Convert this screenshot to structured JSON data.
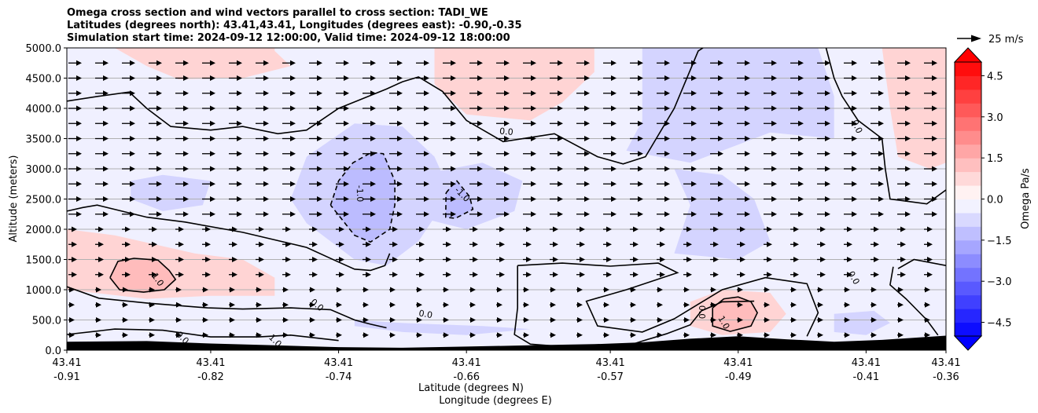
{
  "chart_data": {
    "type": "heatmap",
    "title_lines": [
      "Omega cross section and wind vectors parallel to cross section: TADI_WE",
      "Latitudes (degrees north): 43.41,43.41, Longitudes (degrees east): -0.90,-0.35",
      "Simulation start time: 2024-09-12 12:00:00, Valid time: 2024-09-12 18:00:00"
    ],
    "ylabel": "Altitude (meters)",
    "xlabel_lat": "Latitude (degrees N)",
    "xlabel_lon": "Longitude (degrees E)",
    "ylim": [
      0,
      5000
    ],
    "xlim": [
      -0.91,
      -0.36
    ],
    "y_ticks": [
      "0.0",
      "500.0",
      "1000.0",
      "1500.0",
      "2000.0",
      "2500.0",
      "3000.0",
      "3500.0",
      "4000.0",
      "4500.0",
      "5000.0"
    ],
    "x_ticks": [
      {
        "lat": "43.41",
        "lon": "-0.91",
        "value": -0.91
      },
      {
        "lat": "43.41",
        "lon": "-0.82",
        "value": -0.82
      },
      {
        "lat": "43.41",
        "lon": "-0.74",
        "value": -0.74
      },
      {
        "lat": "43.41",
        "lon": "-0.66",
        "value": -0.66
      },
      {
        "lat": "43.41",
        "lon": "-0.57",
        "value": -0.57
      },
      {
        "lat": "43.41",
        "lon": "-0.49",
        "value": -0.49
      },
      {
        "lat": "43.41",
        "lon": "-0.41",
        "value": -0.41
      },
      {
        "lat": "43.41",
        "lon": "-0.36",
        "value": -0.36
      }
    ],
    "grid": "horizontal",
    "colorbar": {
      "label": "Omega Pa/s",
      "range": [
        -5,
        5
      ],
      "ticks": [
        "4.5",
        "3.0",
        "1.5",
        "0.0",
        "−1.5",
        "−3.0",
        "−4.5"
      ],
      "tick_values": [
        4.5,
        3.0,
        1.5,
        0.0,
        -1.5,
        -3.0,
        -4.5
      ],
      "negative_color": "#0000ff",
      "positive_color": "#ff0000"
    },
    "vector_key": "25 m/s",
    "contour_labels": [
      {
        "text": "0.0",
        "x": -0.635,
        "y": 3620,
        "rot": 5
      },
      {
        "text": "-1.0",
        "x": -0.7265,
        "y": 2590,
        "rot": 88
      },
      {
        "text": "-1.0",
        "x": -0.6625,
        "y": 2580,
        "rot": 45
      },
      {
        "text": "0.0",
        "x": -0.4155,
        "y": 3700,
        "rot": 65
      },
      {
        "text": "1.0",
        "x": -0.853,
        "y": 1170,
        "rot": 55
      },
      {
        "text": "0.0",
        "x": -0.7533,
        "y": 750,
        "rot": 40
      },
      {
        "text": "0.0",
        "x": -0.6855,
        "y": 600,
        "rot": 10
      },
      {
        "text": "0.0",
        "x": -0.5125,
        "y": 630,
        "rot": 90
      },
      {
        "text": "1.0",
        "x": -0.4988,
        "y": 460,
        "rot": 60
      },
      {
        "text": "0.0",
        "x": -0.4175,
        "y": 1200,
        "rot": 60
      },
      {
        "text": "0.0",
        "x": -0.8375,
        "y": 210,
        "rot": 45
      },
      {
        "text": "1.0",
        "x": -0.7795,
        "y": 160,
        "rot": 45
      }
    ],
    "zero_contours": [
      [
        [
          -0.91,
          4120
        ],
        [
          -0.89,
          4200
        ],
        [
          -0.871,
          4270
        ],
        [
          -0.86,
          4000
        ],
        [
          -0.845,
          3700
        ],
        [
          -0.82,
          3640
        ],
        [
          -0.8,
          3700
        ],
        [
          -0.778,
          3580
        ],
        [
          -0.76,
          3640
        ],
        [
          -0.74,
          4000
        ],
        [
          -0.71,
          4320
        ],
        [
          -0.7,
          4440
        ],
        [
          -0.69,
          4520
        ],
        [
          -0.675,
          4280
        ],
        [
          -0.66,
          3800
        ],
        [
          -0.637,
          3450
        ],
        [
          -0.605,
          3580
        ],
        [
          -0.578,
          3200
        ],
        [
          -0.562,
          3080
        ],
        [
          -0.548,
          3200
        ],
        [
          -0.53,
          4000
        ],
        [
          -0.515,
          4950
        ],
        [
          -0.512,
          5000
        ]
      ],
      [
        [
          -0.435,
          5000
        ],
        [
          -0.43,
          4500
        ],
        [
          -0.425,
          4200
        ],
        [
          -0.415,
          3800
        ],
        [
          -0.4,
          3500
        ],
        [
          -0.398,
          3000
        ],
        [
          -0.395,
          2500
        ],
        [
          -0.372,
          2420
        ],
        [
          -0.36,
          2650
        ]
      ],
      [
        [
          -0.91,
          2300
        ],
        [
          -0.9,
          2360
        ],
        [
          -0.891,
          2400
        ],
        [
          -0.86,
          2200
        ],
        [
          -0.836,
          2120
        ],
        [
          -0.8,
          1950
        ],
        [
          -0.76,
          1700
        ],
        [
          -0.741,
          1470
        ],
        [
          -0.73,
          1340
        ],
        [
          -0.72,
          1320
        ],
        [
          -0.711,
          1400
        ],
        [
          -0.708,
          1600
        ]
      ],
      [
        [
          -0.628,
          1400
        ],
        [
          -0.6,
          1440
        ],
        [
          -0.57,
          1390
        ],
        [
          -0.54,
          1440
        ],
        [
          -0.528,
          1280
        ],
        [
          -0.56,
          1000
        ],
        [
          -0.585,
          810
        ],
        [
          -0.578,
          400
        ],
        [
          -0.55,
          300
        ],
        [
          -0.53,
          520
        ],
        [
          -0.5,
          1000
        ],
        [
          -0.473,
          1200
        ],
        [
          -0.447,
          1100
        ],
        [
          -0.44,
          620
        ],
        [
          -0.447,
          230
        ]
      ],
      [
        [
          -0.628,
          1400
        ],
        [
          -0.628,
          700
        ],
        [
          -0.63,
          260
        ],
        [
          -0.62,
          100
        ],
        [
          -0.59,
          40
        ]
      ],
      [
        [
          -0.91,
          1050
        ],
        [
          -0.89,
          860
        ],
        [
          -0.86,
          780
        ],
        [
          -0.822,
          700
        ],
        [
          -0.8,
          680
        ],
        [
          -0.77,
          700
        ],
        [
          -0.745,
          670
        ],
        [
          -0.73,
          500
        ],
        [
          -0.72,
          430
        ],
        [
          -0.71,
          370
        ]
      ],
      [
        [
          -0.91,
          260
        ],
        [
          -0.88,
          350
        ],
        [
          -0.85,
          330
        ],
        [
          -0.82,
          220
        ],
        [
          -0.79,
          220
        ],
        [
          -0.77,
          250
        ],
        [
          -0.74,
          160
        ]
      ],
      [
        [
          -0.39,
          1350
        ],
        [
          -0.38,
          1500
        ],
        [
          -0.36,
          1400
        ]
      ],
      [
        [
          -0.393,
          1380
        ],
        [
          -0.395,
          1080
        ],
        [
          -0.385,
          850
        ],
        [
          -0.372,
          500
        ],
        [
          -0.365,
          250
        ]
      ],
      [
        [
          -0.563,
          40
        ],
        [
          -0.55,
          150
        ],
        [
          -0.535,
          270
        ],
        [
          -0.52,
          420
        ],
        [
          -0.513,
          650
        ],
        [
          -0.5,
          800
        ],
        [
          -0.48,
          810
        ]
      ]
    ],
    "negative_contours": [
      [
        [
          -0.745,
          2400
        ],
        [
          -0.74,
          2800
        ],
        [
          -0.731,
          3100
        ],
        [
          -0.7195,
          3270
        ],
        [
          -0.712,
          3250
        ],
        [
          -0.7048,
          2800
        ],
        [
          -0.7048,
          2400
        ],
        [
          -0.708,
          2000
        ],
        [
          -0.72,
          1790
        ],
        [
          -0.73,
          1900
        ],
        [
          -0.745,
          2400
        ]
      ],
      [
        [
          -0.6728,
          2600
        ],
        [
          -0.6698,
          2700
        ],
        [
          -0.666,
          2800
        ],
        [
          -0.658,
          2540
        ],
        [
          -0.656,
          2330
        ],
        [
          -0.667,
          2180
        ],
        [
          -0.673,
          2200
        ],
        [
          -0.6728,
          2600
        ]
      ]
    ],
    "one_contours": [
      [
        [
          -0.883,
          1200
        ],
        [
          -0.878,
          1470
        ],
        [
          -0.868,
          1520
        ],
        [
          -0.853,
          1490
        ],
        [
          -0.846,
          1320
        ],
        [
          -0.842,
          1170
        ],
        [
          -0.849,
          1000
        ],
        [
          -0.862,
          960
        ],
        [
          -0.877,
          1000
        ],
        [
          -0.883,
          1200
        ]
      ],
      [
        [
          -0.506,
          700
        ],
        [
          -0.499,
          850
        ],
        [
          -0.49,
          880
        ],
        [
          -0.482,
          800
        ],
        [
          -0.478,
          620
        ],
        [
          -0.482,
          400
        ],
        [
          -0.495,
          310
        ],
        [
          -0.506,
          400
        ],
        [
          -0.506,
          700
        ]
      ]
    ],
    "shaded_regions": [
      {
        "level": 1.0,
        "points": [
          [
            -0.78,
            4950
          ],
          [
            -0.77,
            4700
          ],
          [
            -0.8,
            4500
          ],
          [
            -0.84,
            4480
          ],
          [
            -0.86,
            4700
          ],
          [
            -0.88,
            5000
          ],
          [
            -0.78,
            5000
          ]
        ]
      },
      {
        "level": 1.0,
        "points": [
          [
            -0.68,
            5000
          ],
          [
            -0.68,
            4400
          ],
          [
            -0.66,
            3900
          ],
          [
            -0.62,
            3800
          ],
          [
            -0.6,
            4100
          ],
          [
            -0.58,
            4600
          ],
          [
            -0.58,
            5000
          ]
        ]
      },
      {
        "level": 1.0,
        "points": [
          [
            -0.91,
            2000
          ],
          [
            -0.88,
            1900
          ],
          [
            -0.83,
            1600
          ],
          [
            -0.8,
            1500
          ],
          [
            -0.78,
            1200
          ],
          [
            -0.78,
            900
          ],
          [
            -0.82,
            900
          ],
          [
            -0.86,
            850
          ],
          [
            -0.91,
            1000
          ]
        ]
      },
      {
        "level": 1.0,
        "points": [
          [
            -0.4,
            5000
          ],
          [
            -0.395,
            4000
          ],
          [
            -0.39,
            3200
          ],
          [
            -0.37,
            3000
          ],
          [
            -0.36,
            3100
          ],
          [
            -0.36,
            5000
          ]
        ]
      },
      {
        "level": 1.0,
        "points": [
          [
            -0.5,
            1000
          ],
          [
            -0.47,
            950
          ],
          [
            -0.46,
            600
          ],
          [
            -0.47,
            300
          ],
          [
            -0.5,
            250
          ],
          [
            -0.52,
            400
          ],
          [
            -0.52,
            800
          ]
        ]
      },
      {
        "level": -1.0,
        "points": [
          [
            -0.76,
            3200
          ],
          [
            -0.73,
            3750
          ],
          [
            -0.7,
            3700
          ],
          [
            -0.68,
            3200
          ],
          [
            -0.67,
            2600
          ],
          [
            -0.69,
            1800
          ],
          [
            -0.71,
            1400
          ],
          [
            -0.73,
            1500
          ],
          [
            -0.76,
            2100
          ],
          [
            -0.77,
            2500
          ]
        ]
      },
      {
        "level": -1.0,
        "points": [
          [
            -0.69,
            2900
          ],
          [
            -0.65,
            3100
          ],
          [
            -0.625,
            2800
          ],
          [
            -0.63,
            2300
          ],
          [
            -0.66,
            2000
          ],
          [
            -0.69,
            2200
          ]
        ]
      },
      {
        "level": -1.0,
        "points": [
          [
            -0.55,
            5000
          ],
          [
            -0.55,
            3800
          ],
          [
            -0.56,
            3300
          ],
          [
            -0.52,
            3100
          ],
          [
            -0.49,
            3400
          ],
          [
            -0.47,
            3600
          ],
          [
            -0.43,
            3500
          ],
          [
            -0.43,
            4200
          ],
          [
            -0.44,
            5000
          ]
        ]
      },
      {
        "level": -1.0,
        "points": [
          [
            -0.53,
            3000
          ],
          [
            -0.52,
            2400
          ],
          [
            -0.53,
            1600
          ],
          [
            -0.49,
            1500
          ],
          [
            -0.47,
            1800
          ],
          [
            -0.48,
            2500
          ],
          [
            -0.5,
            2900
          ]
        ]
      },
      {
        "level": -1.0,
        "points": [
          [
            -0.87,
            2800
          ],
          [
            -0.85,
            2900
          ],
          [
            -0.82,
            2800
          ],
          [
            -0.825,
            2400
          ],
          [
            -0.85,
            2300
          ],
          [
            -0.87,
            2500
          ]
        ]
      },
      {
        "level": -1.0,
        "points": [
          [
            -0.73,
            500
          ],
          [
            -0.7,
            450
          ],
          [
            -0.65,
            400
          ],
          [
            -0.62,
            350
          ],
          [
            -0.66,
            250
          ],
          [
            -0.7,
            300
          ],
          [
            -0.73,
            400
          ]
        ]
      },
      {
        "level": -1.0,
        "points": [
          [
            -0.43,
            600
          ],
          [
            -0.405,
            650
          ],
          [
            -0.395,
            450
          ],
          [
            -0.41,
            250
          ],
          [
            -0.43,
            300
          ]
        ]
      }
    ]
  }
}
